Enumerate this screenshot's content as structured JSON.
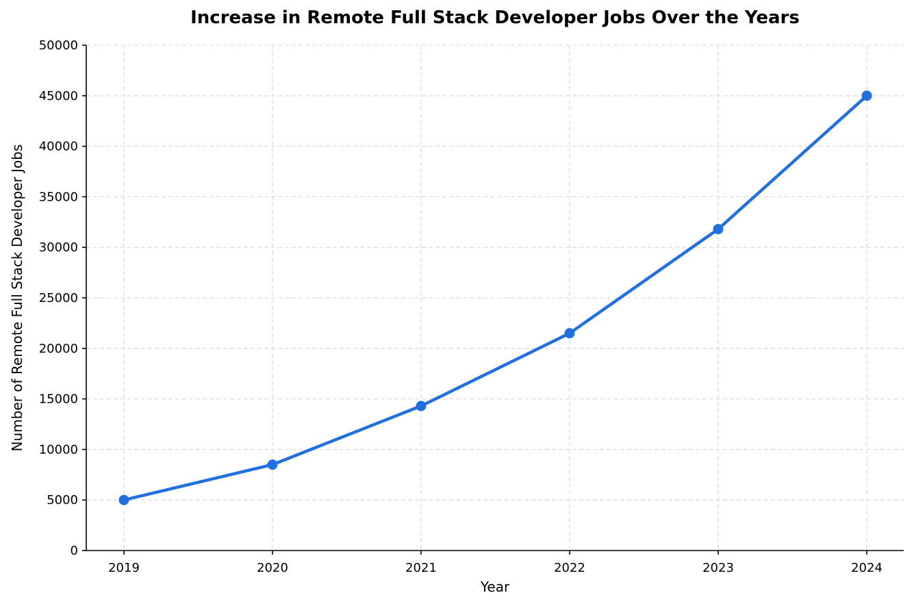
{
  "chart_data": {
    "type": "line",
    "title": "Increase in Remote Full Stack Developer Jobs Over the Years",
    "xlabel": "Year",
    "ylabel": "Number of Remote Full Stack Developer Jobs",
    "x": [
      "2019",
      "2020",
      "2021",
      "2022",
      "2023",
      "2024"
    ],
    "series": [
      {
        "values": [
          5000,
          8500,
          14300,
          21500,
          31800,
          45000
        ],
        "color": "#2270e0",
        "marker": "circle"
      }
    ],
    "ylim": [
      0,
      50000
    ],
    "yticks": [
      "0",
      "5000",
      "10000",
      "15000",
      "20000",
      "25000",
      "30000",
      "35000",
      "40000",
      "45000",
      "50000"
    ],
    "grid": true,
    "legend": "none"
  }
}
